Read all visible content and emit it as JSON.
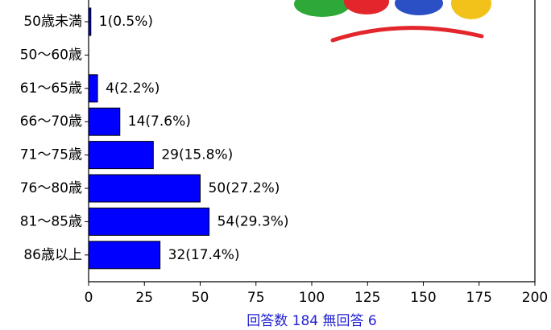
{
  "chart_data": {
    "type": "bar",
    "orientation": "horizontal",
    "categories": [
      "50歳未満",
      "50〜60歳",
      "61〜65歳",
      "66〜70歳",
      "71〜75歳",
      "76〜80歳",
      "81〜85歳",
      "86歳以上"
    ],
    "values": [
      1,
      0,
      4,
      14,
      29,
      50,
      54,
      32
    ],
    "value_labels": [
      "1(0.5%)",
      null,
      "4(2.2%)",
      "14(7.6%)",
      "29(15.8%)",
      "50(27.2%)",
      "54(29.3%)",
      "32(17.4%)"
    ],
    "color": "#0000ff",
    "xlabel": "回答数 184 無回答 6",
    "xlim": [
      0,
      200
    ],
    "xticks": [
      0,
      25,
      50,
      75,
      100,
      125,
      150,
      175,
      200
    ]
  }
}
